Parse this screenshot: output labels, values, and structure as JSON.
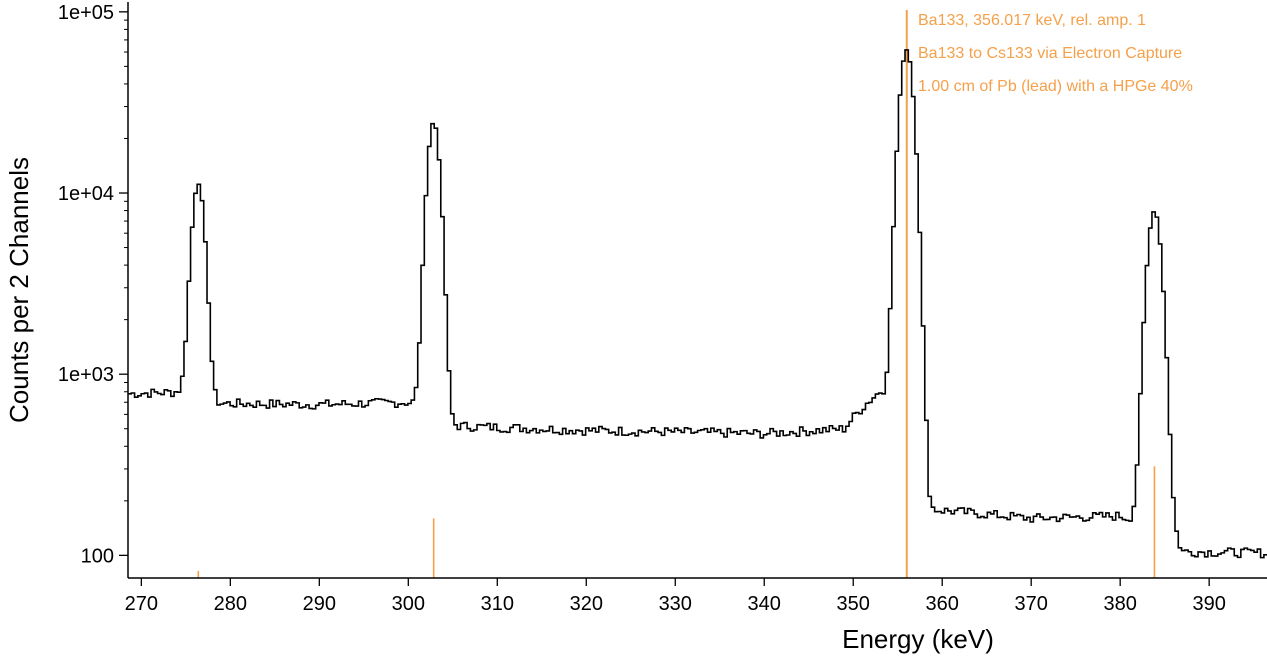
{
  "chart_data": {
    "type": "line",
    "step": true,
    "xlabel": "Energy (keV)",
    "ylabel": "Counts per 2 Channels",
    "xlim": [
      268.5,
      396.5
    ],
    "ylim": [
      75,
      105000
    ],
    "yscale": "log",
    "x_ticks": [
      270,
      280,
      290,
      300,
      310,
      320,
      330,
      340,
      350,
      360,
      370,
      380,
      390
    ],
    "y_ticks": [
      {
        "value": 100,
        "label": "100"
      },
      {
        "value": 1000,
        "label": "1e+03"
      },
      {
        "value": 10000,
        "label": "1e+04"
      },
      {
        "value": 100000,
        "label": "1e+05"
      }
    ],
    "grid": false,
    "line_color": "#000000",
    "reference_color": "#f5a04a",
    "reference_lines": [
      {
        "energy": 276.4,
        "height": 82
      },
      {
        "energy": 302.85,
        "height": 160
      },
      {
        "energy": 356.017,
        "height": 105000
      },
      {
        "energy": 383.85,
        "height": 310
      }
    ],
    "peaks": [
      {
        "center": 276.4,
        "amplitude": 10500,
        "sigma": 0.62
      },
      {
        "center": 302.85,
        "amplitude": 24000,
        "sigma": 0.62
      },
      {
        "center": 356.0,
        "amplitude": 61000,
        "sigma": 0.68
      },
      {
        "center": 383.85,
        "amplitude": 7800,
        "sigma": 0.7
      }
    ],
    "background": [
      {
        "x": 268.5,
        "y": 780
      },
      {
        "x": 275.0,
        "y": 800
      },
      {
        "x": 278.0,
        "y": 690
      },
      {
        "x": 290.0,
        "y": 680
      },
      {
        "x": 300.0,
        "y": 700
      },
      {
        "x": 303.5,
        "y": 600
      },
      {
        "x": 304.5,
        "y": 520
      },
      {
        "x": 320.0,
        "y": 490
      },
      {
        "x": 340.0,
        "y": 470
      },
      {
        "x": 349.0,
        "y": 500
      },
      {
        "x": 353.0,
        "y": 800
      },
      {
        "x": 357.0,
        "y": 600
      },
      {
        "x": 358.5,
        "y": 180
      },
      {
        "x": 370.0,
        "y": 160
      },
      {
        "x": 380.0,
        "y": 165
      },
      {
        "x": 386.0,
        "y": 130
      },
      {
        "x": 387.0,
        "y": 105
      },
      {
        "x": 396.5,
        "y": 103
      }
    ],
    "bin_width": 0.37,
    "annotations": [
      "Ba133, 356.017 keV, rel. amp. 1",
      "Ba133 to Cs133 via Electron Capture",
      "1.00 cm of Pb (lead) with a HPGe 40%"
    ]
  }
}
